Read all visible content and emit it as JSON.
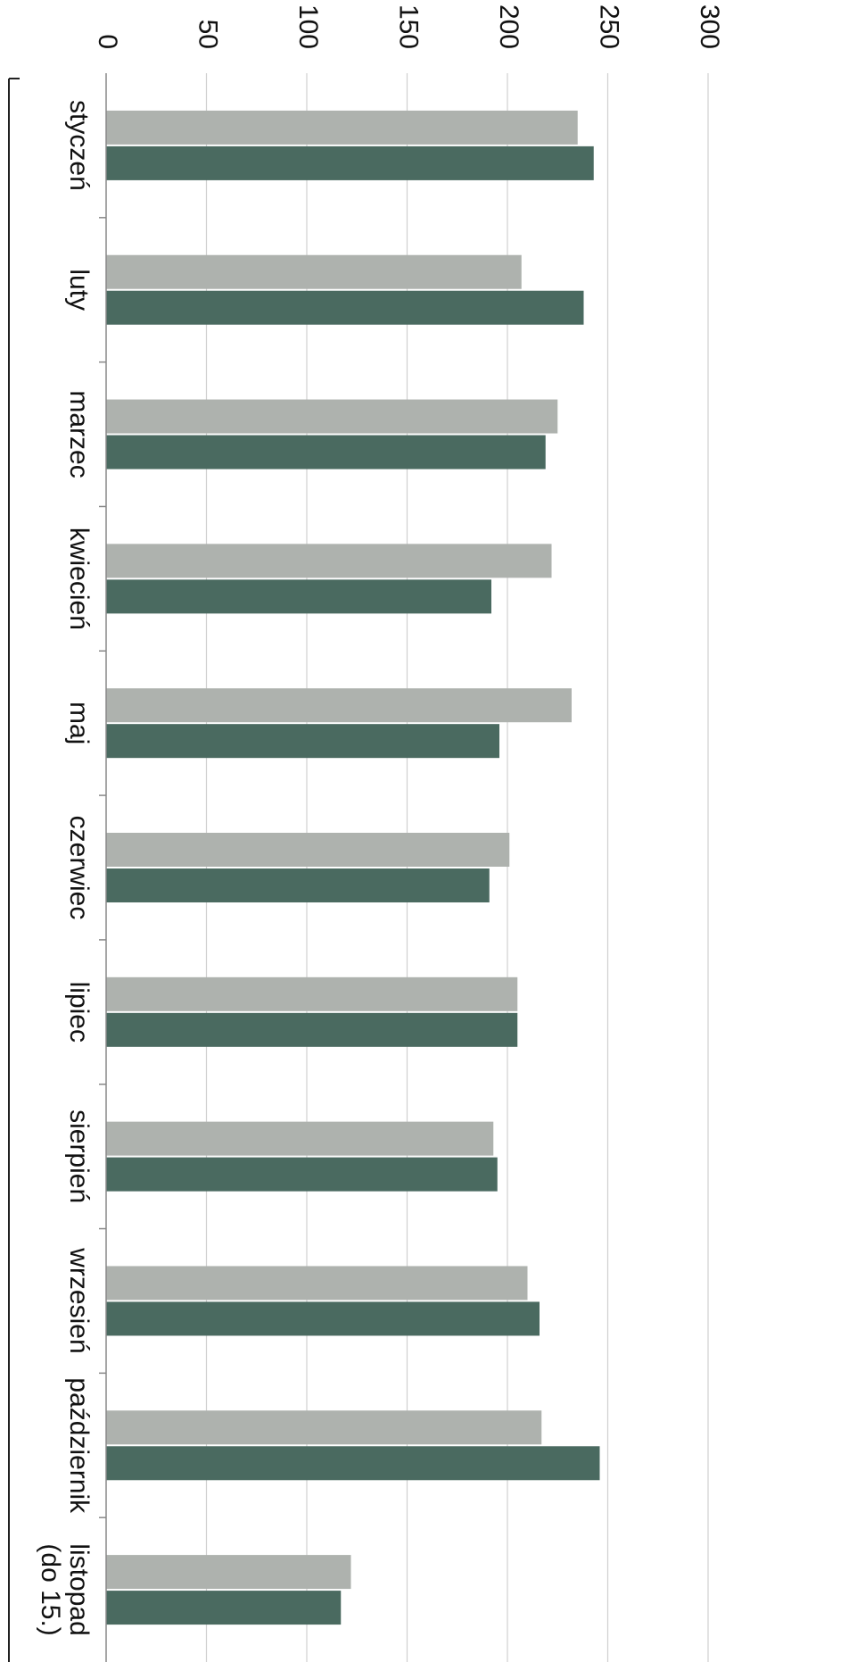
{
  "chart_data": {
    "type": "bar",
    "orientation": "horizontal",
    "categories": [
      "styczeń",
      "luty",
      "marzec",
      "kwiecień",
      "maj",
      "czerwiec",
      "lipiec",
      "sierpień",
      "wrzesień",
      "październik",
      "listopad\n(do 15.)"
    ],
    "series": [
      {
        "values": [
          235,
          207,
          225,
          222,
          232,
          201,
          205,
          193,
          210,
          217,
          122
        ],
        "color": "#aeb2ae"
      },
      {
        "values": [
          243,
          238,
          219,
          192,
          196,
          191,
          205,
          195,
          216,
          246,
          117
        ],
        "color": "#4a6a60"
      }
    ],
    "xlim": [
      0,
      300
    ],
    "xticks": [
      "0",
      "50",
      "100",
      "150",
      "200",
      "250",
      "300"
    ],
    "grid": true,
    "legend": "none",
    "title": "",
    "xlabel": "",
    "ylabel": ""
  }
}
